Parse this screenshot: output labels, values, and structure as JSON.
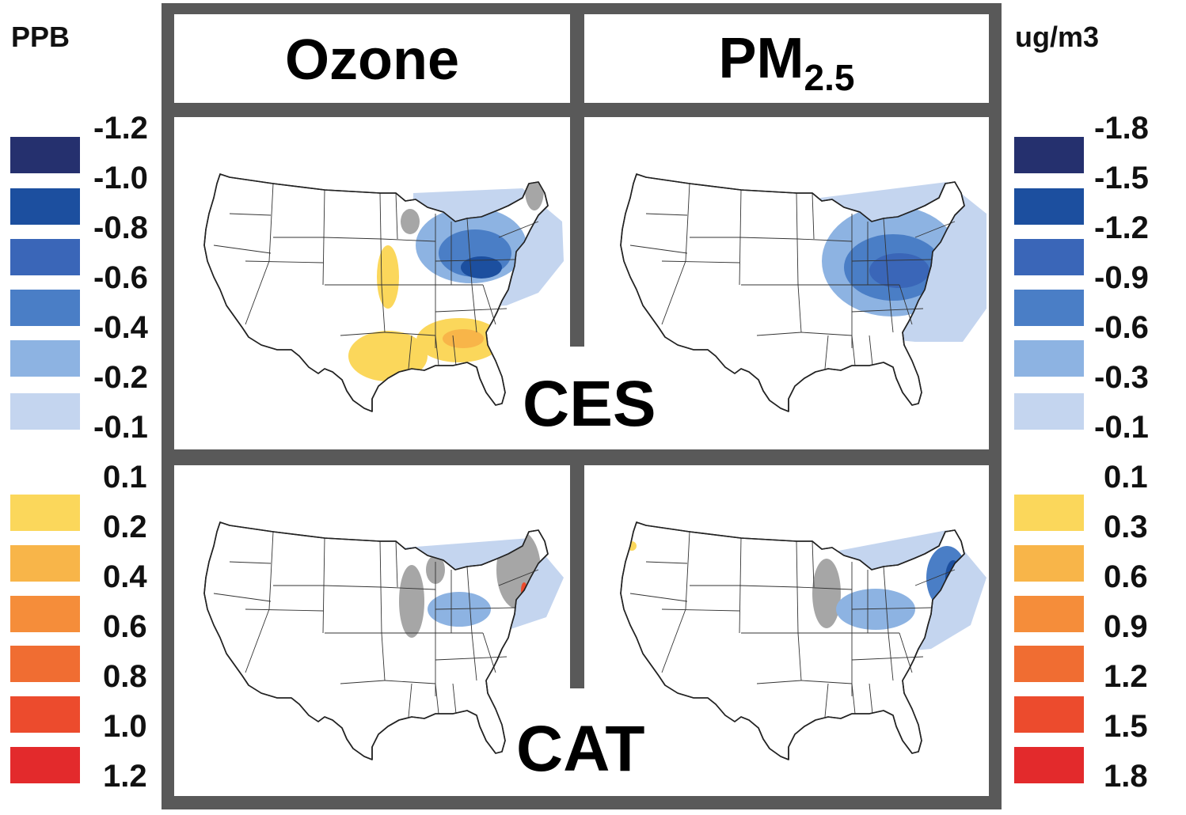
{
  "left_unit": "PPB",
  "right_unit": "ug/m3",
  "columns": {
    "ozone": "Ozone",
    "pm_main": "PM",
    "pm_sub": "2.5"
  },
  "rows": {
    "top": "CES",
    "bottom": "CAT"
  },
  "left_scale": {
    "negative_ticks": [
      "-1.2",
      "-1.0",
      "-0.8",
      "-0.6",
      "-0.4",
      "-0.2",
      "-0.1"
    ],
    "positive_ticks": [
      "0.1",
      "0.2",
      "0.4",
      "0.6",
      "0.8",
      "1.0",
      "1.2"
    ]
  },
  "right_scale": {
    "negative_ticks": [
      "-1.8",
      "-1.5",
      "-1.2",
      "-0.9",
      "-0.6",
      "-0.3",
      "-0.1"
    ],
    "positive_ticks": [
      "0.1",
      "0.3",
      "0.6",
      "0.9",
      "1.2",
      "1.5",
      "1.8"
    ]
  },
  "colors": {
    "blue_scale": [
      "#25306e",
      "#1c4f9f",
      "#3a66b8",
      "#4a7ec6",
      "#8db3e2",
      "#c4d5ef"
    ],
    "warm_scale": [
      "#fbd75b",
      "#f8b549",
      "#f58d3a",
      "#f06d32",
      "#ec4b2d",
      "#e32a2c"
    ],
    "no_data_gray": "#a6a6a6",
    "frame": "#595959"
  }
}
